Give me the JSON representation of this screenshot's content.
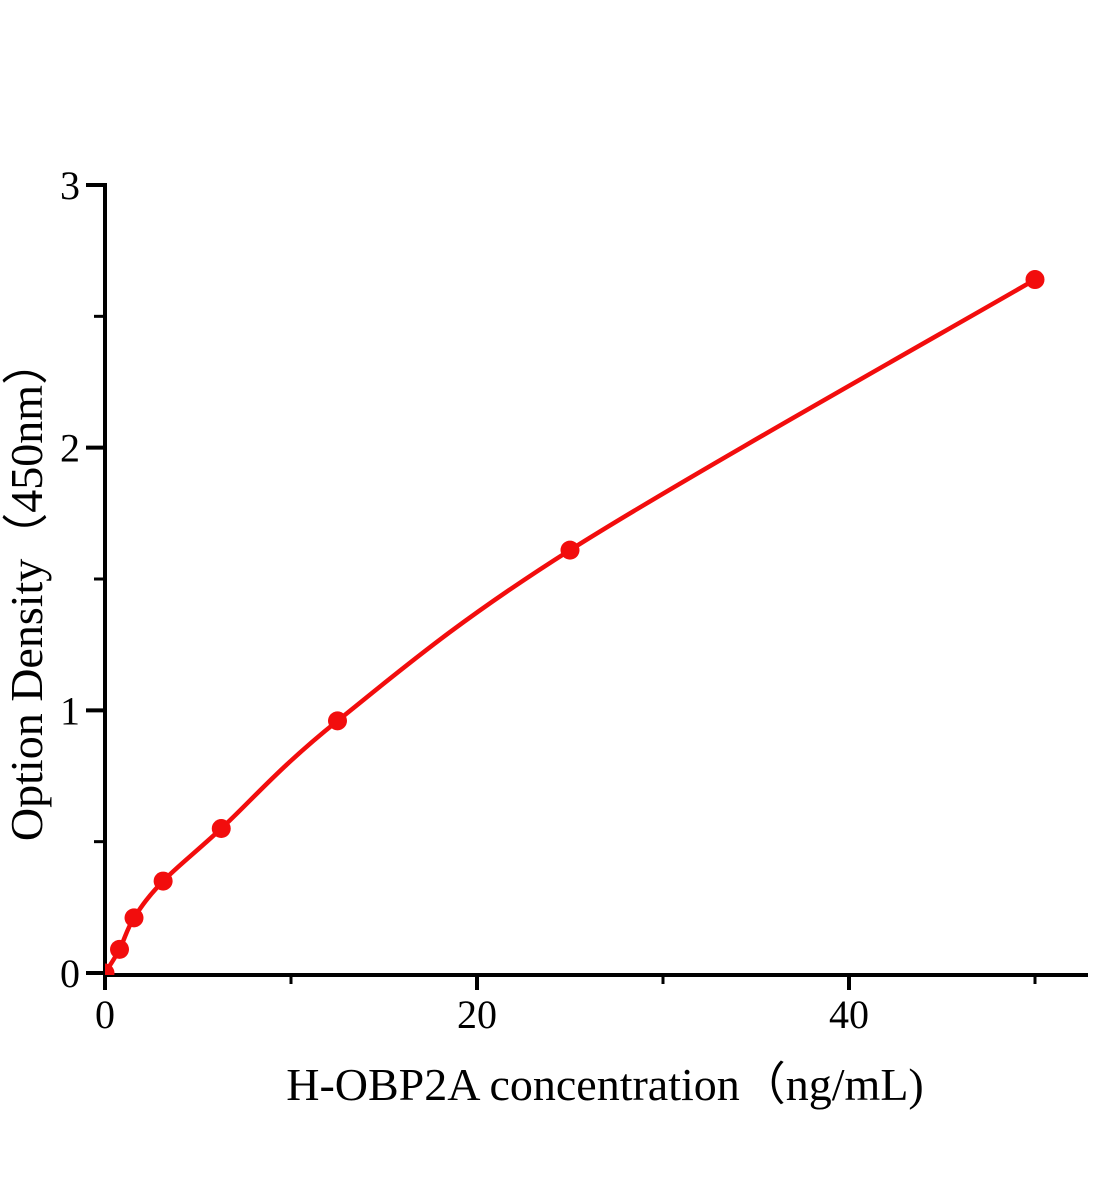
{
  "figure": {
    "background": "#ffffff",
    "axis_color": "#000000",
    "curve_color": "#f20d0d"
  },
  "chart_data": {
    "type": "line",
    "title": "",
    "xlabel": "H-OBP2A concentration（ng/mL)",
    "ylabel": "Option Density（450nm）",
    "line_style": "smooth",
    "marker_style": "filled-circle",
    "grid": false,
    "legend": false,
    "xlim": [
      0,
      52.9
    ],
    "ylim": [
      0,
      3
    ],
    "x_major_ticks": [
      0,
      20,
      40
    ],
    "x_tick_labels": [
      "0",
      "20",
      "40"
    ],
    "x_minor_ticks": [
      10,
      30,
      50
    ],
    "y_major_ticks": [
      0,
      1,
      2,
      3
    ],
    "y_tick_labels": [
      "0",
      "1",
      "2",
      "3"
    ],
    "y_minor_ticks": [
      0.5,
      1.5,
      2.5
    ],
    "points": [
      {
        "x": 0,
        "y": 0
      },
      {
        "x": 0.78,
        "y": 0.09
      },
      {
        "x": 1.56,
        "y": 0.21
      },
      {
        "x": 3.125,
        "y": 0.35
      },
      {
        "x": 6.25,
        "y": 0.55
      },
      {
        "x": 12.5,
        "y": 0.96
      },
      {
        "x": 25,
        "y": 1.61
      },
      {
        "x": 50,
        "y": 2.64
      }
    ]
  }
}
